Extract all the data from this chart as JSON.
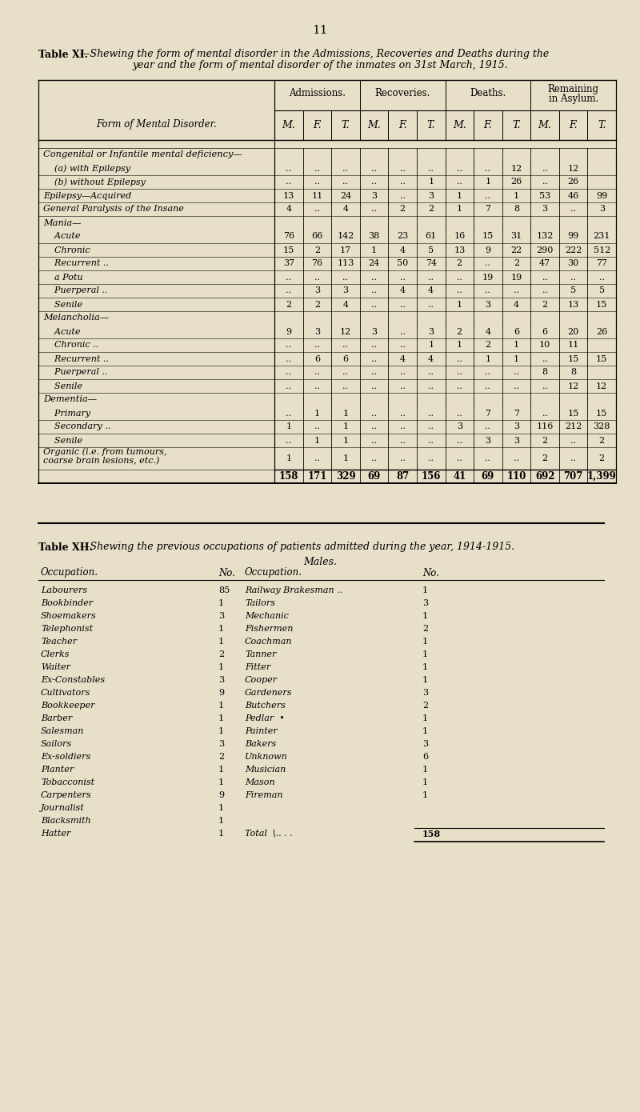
{
  "bg_color": "#e8dfc8",
  "page_number": "11",
  "table1_title_bold": "Table XI.",
  "table1_title_rest1": "—Shewing the form of mental disorder in the Admissions, Recoveries and Deaths during the",
  "table1_title_line2": "year and the form of mental disorder of the inmates on 31st March, 1915.",
  "table1_col_header_groups": [
    "Admissions.",
    "Recoveries.",
    "Deaths.",
    "Remaining\nin Asylum."
  ],
  "table1_sub_headers": [
    "M.",
    "F.",
    "T.",
    "M.",
    "F.",
    "T.",
    "M.",
    "F.",
    "T.",
    "M.",
    "F.",
    "T."
  ],
  "table1_row_label_header": "Form of Mental Disorder.",
  "table1_rows": [
    [
      "Congenital or Infantile mental deficiency—",
      "",
      "",
      "",
      "",
      "",
      "",
      "",
      "",
      "",
      "",
      "",
      ""
    ],
    [
      "    (a) with Epilepsy",
      "..",
      "..",
      "..",
      "..",
      "..",
      "..",
      "..",
      "..",
      "12",
      "..",
      "12"
    ],
    [
      "    (b) without Epilepsy",
      "..",
      "..",
      "..",
      "..",
      "..",
      "1",
      "..",
      "1",
      "26",
      "..",
      "26"
    ],
    [
      "Epilepsy—Acquired",
      "13",
      "11",
      "24",
      "3",
      "..",
      "3",
      "1",
      "..",
      "1",
      "53",
      "46",
      "99"
    ],
    [
      "General Paralysis of the Insane",
      "4",
      "..",
      "4",
      "..",
      "2",
      "2",
      "1",
      "7",
      "8",
      "3",
      "..",
      "3"
    ],
    [
      "Mania—",
      "",
      "",
      "",
      "",
      "",
      "",
      "",
      "",
      "",
      "",
      "",
      ""
    ],
    [
      "    Acute",
      "76",
      "66",
      "142",
      "38",
      "23",
      "61",
      "16",
      "15",
      "31",
      "132",
      "99",
      "231"
    ],
    [
      "    Chronic",
      "15",
      "2",
      "17",
      "1",
      "4",
      "5",
      "13",
      "9",
      "22",
      "290",
      "222",
      "512"
    ],
    [
      "    Recurrent ..",
      "37",
      "76",
      "113",
      "24",
      "50",
      "74",
      "2",
      "..",
      "2",
      "47",
      "30",
      "77"
    ],
    [
      "    a Potu",
      "..",
      "..",
      "..",
      "..",
      "..",
      "..",
      "..",
      "19",
      "19",
      "..",
      "..",
      ".."
    ],
    [
      "    Puerperal ..",
      "..",
      "3",
      "3",
      "..",
      "4",
      "4",
      "..",
      "..",
      "..",
      "..",
      "5",
      "5"
    ],
    [
      "    Senile",
      "2",
      "2",
      "4",
      "..",
      "..",
      "..",
      "1",
      "3",
      "4",
      "2",
      "13",
      "15"
    ],
    [
      "Melancholia—",
      "",
      "",
      "",
      "",
      "",
      "",
      "",
      "",
      "",
      "",
      "",
      ""
    ],
    [
      "    Acute",
      "9",
      "3",
      "12",
      "3",
      "..",
      "3",
      "2",
      "4",
      "6",
      "6",
      "20",
      "26"
    ],
    [
      "    Chronic ..",
      "..",
      "..",
      "..",
      "..",
      "..",
      "1",
      "1",
      "2",
      "1",
      "10",
      "11"
    ],
    [
      "    Recurrent ..",
      "..",
      "6",
      "6",
      "..",
      "4",
      "4",
      "..",
      "1",
      "1",
      "..",
      "15",
      "15"
    ],
    [
      "    Puerperal ..",
      "..",
      "..",
      "..",
      "..",
      "..",
      "..",
      "..",
      "..",
      "..",
      "8",
      "8"
    ],
    [
      "    Senile",
      "..",
      "..",
      "..",
      "..",
      "..",
      "..",
      "..",
      "..",
      "..",
      "..",
      "12",
      "12"
    ],
    [
      "Dementia—",
      "",
      "",
      "",
      "",
      "",
      "",
      "",
      "",
      "",
      "",
      "",
      ""
    ],
    [
      "    Primary",
      "..",
      "1",
      "1",
      "..",
      "..",
      "..",
      "..",
      "7",
      "7",
      "..",
      "15",
      "15"
    ],
    [
      "    Secondary ..",
      "1",
      "..",
      "1",
      "..",
      "..",
      "..",
      "3",
      "..",
      "3",
      "116",
      "212",
      "328"
    ],
    [
      "    Senile",
      "..",
      "1",
      "1",
      "..",
      "..",
      "..",
      "..",
      "3",
      "3",
      "2",
      "..",
      "2"
    ],
    [
      "    Organic (i.e. from tumours,\n    coarse brain lesions, etc.)",
      "1",
      "..",
      "1",
      "..",
      "..",
      "..",
      "..",
      "..",
      "..",
      "2",
      "..",
      "2"
    ],
    [
      "TOTAL",
      "158",
      "171",
      "329",
      "69",
      "87",
      "156",
      "41",
      "69",
      "110",
      "692",
      "707",
      "1,399"
    ]
  ],
  "table2_title_bold": "Table XII.",
  "table2_title_rest": "—Shewing the previous occupations of patients admitted during the year, 1914-1915.",
  "table2_subtitle": "Males.",
  "table2_col_headers": [
    "Occupation.",
    "No.",
    "Occupation.",
    "No."
  ],
  "table2_rows": [
    [
      "Labourers",
      "85",
      "Railway Brakesman ..",
      "1"
    ],
    [
      "Bookbinder",
      "1",
      "Tailors",
      "3"
    ],
    [
      "Shoemakers",
      "3",
      "Mechanic",
      "1"
    ],
    [
      "Telephonist",
      "1",
      "Fishermen",
      "2"
    ],
    [
      "Teacher",
      "1",
      "Coachman",
      "1"
    ],
    [
      "Clerks",
      "2",
      "Tanner",
      "1"
    ],
    [
      "Waiter",
      "1",
      "Fitter",
      "1"
    ],
    [
      "Ex-Constables",
      "3",
      "Cooper",
      "1"
    ],
    [
      "Cultivators",
      "9",
      "Gardeners",
      "3"
    ],
    [
      "Bookkeeper",
      "1",
      "Butchers",
      "2"
    ],
    [
      "Barber",
      "1",
      "Pedlar  •",
      "1"
    ],
    [
      "Salesman",
      "1",
      "Painter",
      "1"
    ],
    [
      "Sailors",
      "3",
      "Bakers",
      "3"
    ],
    [
      "Ex-soldiers",
      "2",
      "Unknown",
      "6"
    ],
    [
      "Planter",
      "1",
      "Musician",
      "1"
    ],
    [
      "Tobacconist",
      "1",
      "Mason",
      "1"
    ],
    [
      "Carpenters",
      "9",
      "Fireman",
      "1"
    ],
    [
      "Journalist",
      "1",
      "",
      ""
    ],
    [
      "Blacksmith",
      "1",
      "",
      ""
    ],
    [
      "Hatter",
      "1",
      "Total  \\.. . .",
      "158"
    ]
  ]
}
